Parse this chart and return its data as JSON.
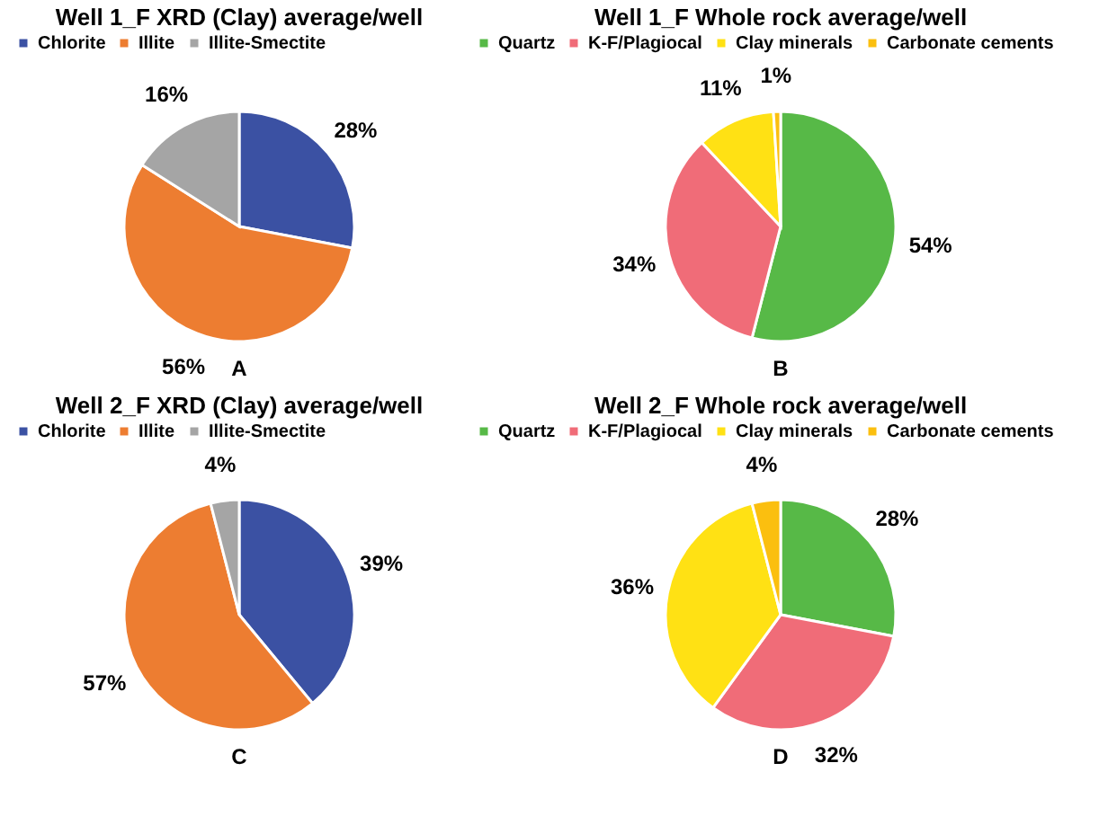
{
  "chart_data": [
    {
      "type": "pie",
      "title": "Well 1_F XRD (Clay) average/well",
      "categories": [
        "Chlorite",
        "Illite",
        "Illite-Smectite"
      ],
      "values": [
        28,
        56,
        16
      ],
      "colors": [
        "#3b51a3",
        "#ed7d31",
        "#a5a5a5"
      ],
      "value_labels": [
        "28%",
        "56%",
        "16%"
      ],
      "legend": "top",
      "annotations": [
        "A"
      ]
    },
    {
      "type": "pie",
      "title": "Well 1_F Whole rock average/well",
      "categories": [
        "Quartz",
        "K-F/Plagiocal",
        "Clay minerals",
        "Carbonate cements"
      ],
      "values": [
        54,
        34,
        11,
        1
      ],
      "colors": [
        "#57b947",
        "#f06c78",
        "#ffe114",
        "#fbbf0f"
      ],
      "value_labels": [
        "54%",
        "34%",
        "11%",
        "1%"
      ],
      "legend": "top",
      "annotations": [
        "B"
      ]
    },
    {
      "type": "pie",
      "title": "Well 2_F XRD (Clay) average/well",
      "categories": [
        "Chlorite",
        "Illite",
        "Illite-Smectite"
      ],
      "values": [
        39,
        57,
        4
      ],
      "colors": [
        "#3b51a3",
        "#ed7d31",
        "#a5a5a5"
      ],
      "value_labels": [
        "39%",
        "57%",
        "4%"
      ],
      "legend": "top",
      "annotations": [
        "C"
      ]
    },
    {
      "type": "pie",
      "title": "Well 2_F Whole rock average/well",
      "categories": [
        "Quartz",
        "K-F/Plagiocal",
        "Clay minerals",
        "Carbonate cements"
      ],
      "values": [
        28,
        32,
        36,
        4
      ],
      "colors": [
        "#57b947",
        "#f06c78",
        "#ffe114",
        "#fbbf0f"
      ],
      "value_labels": [
        "28%",
        "32%",
        "36%",
        "4%"
      ],
      "legend": "top",
      "annotations": [
        "D"
      ]
    }
  ]
}
